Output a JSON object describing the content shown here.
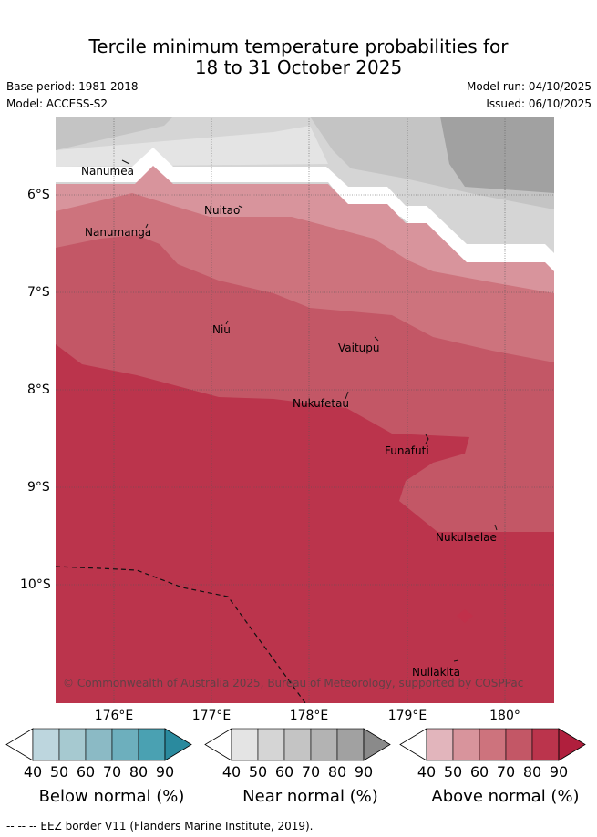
{
  "title_line1": "Tercile minimum temperature probabilities for",
  "title_line2": "18 to 31 October 2025",
  "base_period": "Base period: 1981-2018",
  "model": "Model: ACCESS-S2",
  "model_run": "Model run: 04/10/2025",
  "issued": "Issued: 06/10/2025",
  "copyright": "© Commonwealth of Australia 2025, Bureau of Meteorology, supported by COSPPac",
  "lon_labels": [
    "176°E",
    "177°E",
    "178°E",
    "179°E",
    "180°"
  ],
  "lat_labels": [
    "6°S",
    "7°S",
    "8°S",
    "9°S",
    "10°S"
  ],
  "places": [
    "Nanumea",
    "Nuitao",
    "Nanumanga",
    "Niu",
    "Vaitupu",
    "Nukufetau",
    "Funafuti",
    "Nukulaelae",
    "Nuilakita"
  ],
  "colorbars": [
    {
      "title": "Below normal (%)",
      "ticks": [
        "40",
        "50",
        "60",
        "70",
        "80",
        "90"
      ],
      "colors": [
        "#bdd6de",
        "#a6c9d0",
        "#8bbac5",
        "#6dafbd",
        "#4aa1b2",
        "#2a8a9e"
      ]
    },
    {
      "title": "Near normal (%)",
      "ticks": [
        "40",
        "50",
        "60",
        "70",
        "80",
        "90"
      ],
      "colors": [
        "#e4e4e4",
        "#d5d5d5",
        "#c4c4c4",
        "#b3b3b3",
        "#a1a1a1",
        "#8a8a8a"
      ]
    },
    {
      "title": "Above normal (%)",
      "ticks": [
        "40",
        "50",
        "60",
        "70",
        "80",
        "90"
      ],
      "colors": [
        "#e2b5bc",
        "#d8949c",
        "#cd737d",
        "#c35766",
        "#bb344c",
        "#b01f3d"
      ]
    }
  ],
  "footer": "-- -- -- EEZ border V11 (Flanders Marine Institute, 2019)."
}
